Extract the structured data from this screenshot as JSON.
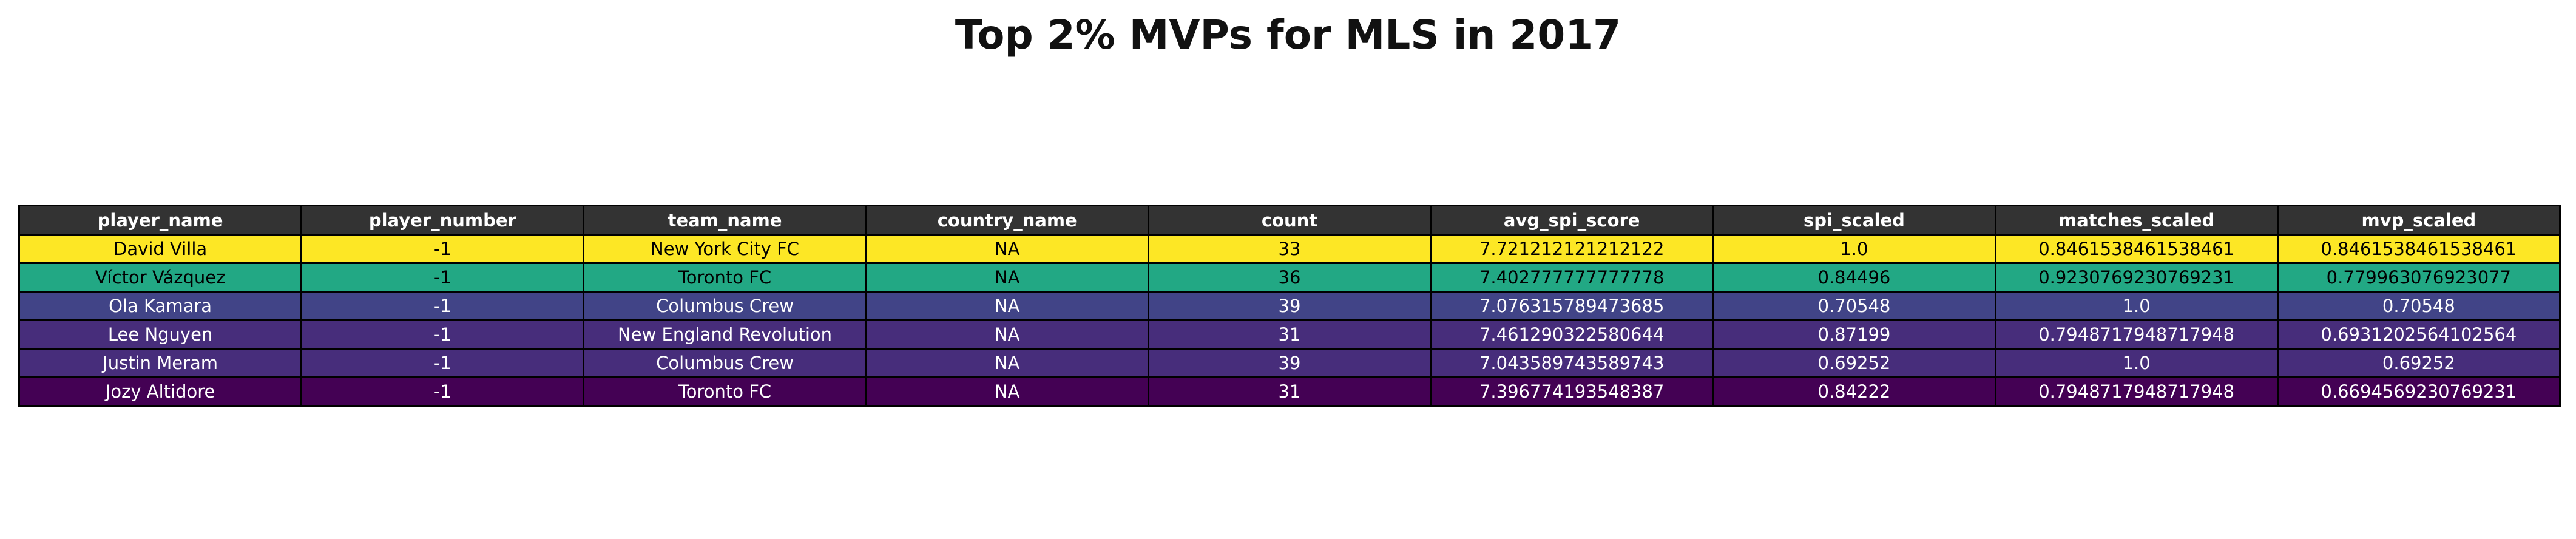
{
  "chart_data": {
    "type": "table",
    "title": "Top 2% MVPs for MLS in 2017",
    "header_color": "#333333",
    "columns": [
      "player_name",
      "player_number",
      "team_name",
      "country_name",
      "count",
      "avg_spi_score",
      "spi_scaled",
      "matches_scaled",
      "mvp_scaled"
    ],
    "rows": [
      {
        "cells": [
          "David Villa",
          "-1",
          "New York City FC",
          "NA",
          "33",
          "7.721212121212122",
          "1.0",
          "0.8461538461538461",
          "0.8461538461538461"
        ],
        "bg": "#fde725",
        "fg": "#000000"
      },
      {
        "cells": [
          "Víctor Vázquez",
          "-1",
          "Toronto FC",
          "NA",
          "36",
          "7.402777777777778",
          "0.84496",
          "0.9230769230769231",
          "0.779963076923077"
        ],
        "bg": "#22a884",
        "fg": "#000000"
      },
      {
        "cells": [
          "Ola Kamara",
          "-1",
          "Columbus Crew",
          "NA",
          "39",
          "7.076315789473685",
          "0.70548",
          "1.0",
          "0.70548"
        ],
        "bg": "#414487",
        "fg": "#ffffff"
      },
      {
        "cells": [
          "Lee Nguyen",
          "-1",
          "New England Revolution",
          "NA",
          "31",
          "7.461290322580644",
          "0.87199",
          "0.7948717948717948",
          "0.6931202564102564"
        ],
        "bg": "#472d7b",
        "fg": "#ffffff"
      },
      {
        "cells": [
          "Justin Meram",
          "-1",
          "Columbus Crew",
          "NA",
          "39",
          "7.043589743589743",
          "0.69252",
          "1.0",
          "0.69252"
        ],
        "bg": "#472d7b",
        "fg": "#ffffff"
      },
      {
        "cells": [
          "Jozy Altidore",
          "-1",
          "Toronto FC",
          "NA",
          "31",
          "7.396774193548387",
          "0.84222",
          "0.7948717948717948",
          "0.6694569230769231"
        ],
        "bg": "#440154",
        "fg": "#ffffff"
      }
    ]
  }
}
